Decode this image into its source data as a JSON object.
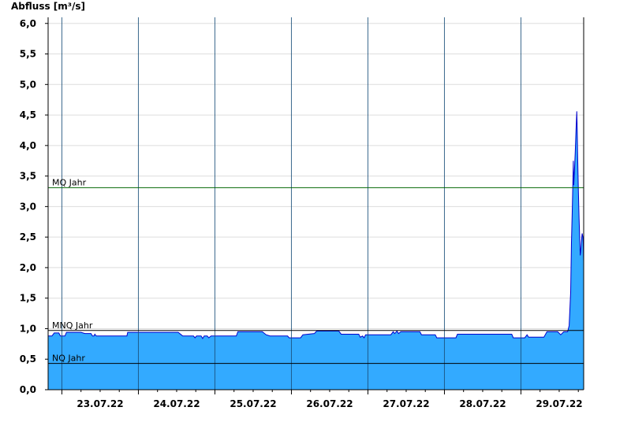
{
  "chart_data": {
    "type": "area",
    "ylabel": "Abfluss [m³/s]",
    "xlabel": "",
    "ylim": [
      0,
      6.1
    ],
    "yticks": [
      "0,0",
      "0,5",
      "1,0",
      "1,5",
      "2,0",
      "2,5",
      "3,0",
      "3,5",
      "4,0",
      "4,5",
      "5,0",
      "5,5",
      "6,0"
    ],
    "yticks_values": [
      0,
      0.5,
      1.0,
      1.5,
      2.0,
      2.5,
      3.0,
      3.5,
      4.0,
      4.5,
      5.0,
      5.5,
      6.0
    ],
    "x_start_day": 22.82,
    "x_end_day": 29.82,
    "day_lines": [
      23,
      24,
      25,
      26,
      27,
      28,
      29
    ],
    "xtick_labels": [
      {
        "day": 23.5,
        "label": "23.07.22"
      },
      {
        "day": 24.5,
        "label": "24.07.22"
      },
      {
        "day": 25.5,
        "label": "25.07.22"
      },
      {
        "day": 26.5,
        "label": "26.07.22"
      },
      {
        "day": 27.5,
        "label": "27.07.22"
      },
      {
        "day": 28.5,
        "label": "28.07.22"
      },
      {
        "day": 29.5,
        "label": "29.07.22"
      }
    ],
    "grid": true,
    "reference_lines": [
      {
        "name": "MQ Jahr",
        "value": 3.31,
        "color": "#006400"
      },
      {
        "name": "MNQ Jahr",
        "value": 0.97,
        "color": "#000000"
      },
      {
        "name": "NQ Jahr",
        "value": 0.43,
        "color": "#000000"
      }
    ],
    "series": [
      {
        "fill_color": "#33aaff",
        "line_color": "#0000cc",
        "points": [
          [
            22.82,
            0.88
          ],
          [
            22.87,
            0.88
          ],
          [
            22.9,
            0.93
          ],
          [
            22.96,
            0.93
          ],
          [
            22.98,
            0.88
          ],
          [
            23.04,
            0.88
          ],
          [
            23.06,
            0.94
          ],
          [
            23.25,
            0.94
          ],
          [
            23.3,
            0.92
          ],
          [
            23.38,
            0.92
          ],
          [
            23.4,
            0.88
          ],
          [
            23.42,
            0.88
          ],
          [
            23.43,
            0.91
          ],
          [
            23.45,
            0.88
          ],
          [
            23.85,
            0.88
          ],
          [
            23.86,
            0.94
          ],
          [
            24.52,
            0.94
          ],
          [
            24.55,
            0.91
          ],
          [
            24.58,
            0.88
          ],
          [
            24.72,
            0.88
          ],
          [
            24.74,
            0.85
          ],
          [
            24.76,
            0.88
          ],
          [
            24.82,
            0.88
          ],
          [
            24.84,
            0.84
          ],
          [
            24.86,
            0.88
          ],
          [
            24.9,
            0.88
          ],
          [
            24.92,
            0.85
          ],
          [
            24.95,
            0.88
          ],
          [
            25.28,
            0.88
          ],
          [
            25.3,
            0.95
          ],
          [
            25.62,
            0.95
          ],
          [
            25.67,
            0.9
          ],
          [
            25.72,
            0.88
          ],
          [
            25.95,
            0.88
          ],
          [
            25.97,
            0.85
          ],
          [
            26.12,
            0.85
          ],
          [
            26.15,
            0.9
          ],
          [
            26.3,
            0.92
          ],
          [
            26.33,
            0.96
          ],
          [
            26.62,
            0.96
          ],
          [
            26.65,
            0.91
          ],
          [
            26.88,
            0.91
          ],
          [
            26.9,
            0.86
          ],
          [
            26.93,
            0.88
          ],
          [
            26.95,
            0.85
          ],
          [
            26.97,
            0.9
          ],
          [
            27.3,
            0.9
          ],
          [
            27.33,
            0.95
          ],
          [
            27.35,
            0.92
          ],
          [
            27.38,
            0.96
          ],
          [
            27.4,
            0.92
          ],
          [
            27.43,
            0.95
          ],
          [
            27.68,
            0.95
          ],
          [
            27.7,
            0.9
          ],
          [
            27.88,
            0.9
          ],
          [
            27.9,
            0.85
          ],
          [
            28.15,
            0.85
          ],
          [
            28.17,
            0.91
          ],
          [
            28.88,
            0.91
          ],
          [
            28.9,
            0.85
          ],
          [
            29.05,
            0.85
          ],
          [
            29.08,
            0.9
          ],
          [
            29.1,
            0.86
          ],
          [
            29.3,
            0.86
          ],
          [
            29.34,
            0.95
          ],
          [
            29.48,
            0.95
          ],
          [
            29.52,
            0.9
          ],
          [
            29.56,
            0.95
          ],
          [
            29.61,
            0.95
          ],
          [
            29.63,
            1.05
          ],
          [
            29.65,
            1.6
          ],
          [
            29.66,
            2.4
          ],
          [
            29.67,
            2.9
          ],
          [
            29.68,
            3.45
          ],
          [
            29.685,
            3.75
          ],
          [
            29.69,
            3.35
          ],
          [
            29.7,
            3.6
          ],
          [
            29.71,
            3.9
          ],
          [
            29.72,
            4.25
          ],
          [
            29.73,
            4.56
          ],
          [
            29.735,
            4.3
          ],
          [
            29.74,
            3.9
          ],
          [
            29.75,
            3.3
          ],
          [
            29.76,
            2.8
          ],
          [
            29.77,
            2.4
          ],
          [
            29.775,
            2.2
          ],
          [
            29.78,
            2.25
          ],
          [
            29.79,
            2.42
          ],
          [
            29.8,
            2.56
          ],
          [
            29.81,
            2.5
          ],
          [
            29.815,
            2.4
          ],
          [
            29.82,
            2.1
          ]
        ]
      }
    ]
  }
}
